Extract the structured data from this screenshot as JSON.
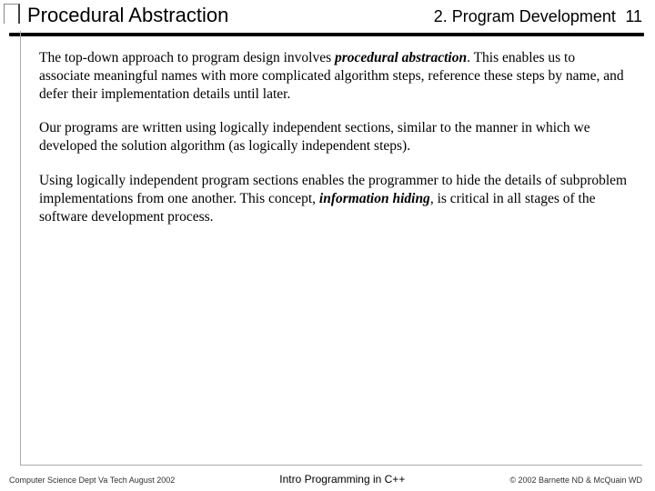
{
  "header": {
    "title": "Procedural Abstraction",
    "chapter": "2. Program Development",
    "page": "11"
  },
  "paragraphs": {
    "p1_a": "The top-down approach to program design involves ",
    "p1_em": "procedural abstraction",
    "p1_b": ". This enables us to associate meaningful names with more complicated algorithm steps, reference these steps by name, and defer their implementation details until later.",
    "p2": "Our programs are written using logically independent sections, similar to the manner in which we developed the solution algorithm (as logically independent steps).",
    "p3_a": "Using logically independent program sections enables the programmer to hide the details of subproblem implementations from one another.  This concept, ",
    "p3_em": "information hiding",
    "p3_b": ", is critical in all stages of the software development process."
  },
  "footer": {
    "left": "Computer Science Dept Va Tech August 2002",
    "center": "Intro Programming in C++",
    "right": "© 2002  Barnette ND & McQuain WD"
  },
  "colors": {
    "divider": "#000000",
    "border": "#aaaaaa",
    "bg": "#ffffff"
  }
}
